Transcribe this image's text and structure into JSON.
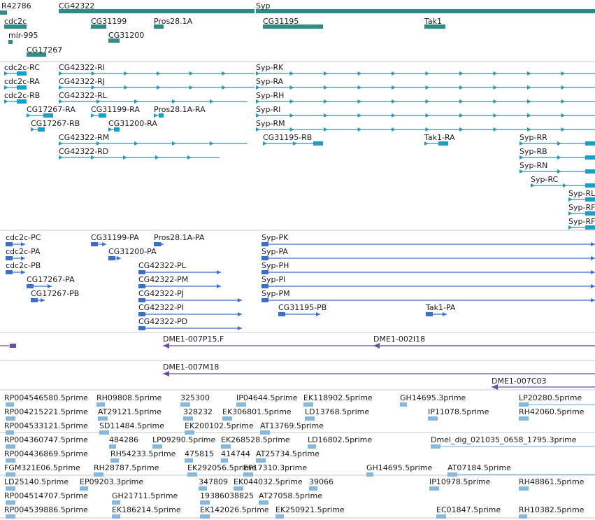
{
  "colors": {
    "gene": "#2e8b87",
    "transcript": "#1aa0c4",
    "protein": "#3a6fd0",
    "clone": "#6a4fa0",
    "est": "#86b9e0",
    "divider": "#c8c8c8"
  },
  "tracks": [
    {
      "name": "genes",
      "features": [
        {
          "label": "R42786"
        },
        {
          "label": "CG42322"
        },
        {
          "label": "Syp"
        },
        {
          "label": "cdc2c"
        },
        {
          "label": "CG31199"
        },
        {
          "label": "Pros28.1A"
        },
        {
          "label": "CG31195"
        },
        {
          "label": "Tak1"
        },
        {
          "label": "mir-995"
        },
        {
          "label": "CG31200"
        },
        {
          "label": "CG17267"
        }
      ]
    },
    {
      "name": "transcripts",
      "features": [
        {
          "label": "cdc2c-RC"
        },
        {
          "label": "CG42322-RI"
        },
        {
          "label": "Syp-RK"
        },
        {
          "label": "cdc2c-RA"
        },
        {
          "label": "CG42322-RJ"
        },
        {
          "label": "Syp-RA"
        },
        {
          "label": "cdc2c-RB"
        },
        {
          "label": "CG42322-RL"
        },
        {
          "label": "Syp-RH"
        },
        {
          "label": "CG17267-RA"
        },
        {
          "label": "CG31199-RA"
        },
        {
          "label": "Pros28.1A-RA"
        },
        {
          "label": "Syp-RI"
        },
        {
          "label": "CG17267-RB"
        },
        {
          "label": "CG31200-RA"
        },
        {
          "label": "Syp-RM"
        },
        {
          "label": "CG42322-RM"
        },
        {
          "label": "CG31195-RB"
        },
        {
          "label": "Tak1-RA"
        },
        {
          "label": "Syp-RR"
        },
        {
          "label": "CG42322-RD"
        },
        {
          "label": "Syp-RB"
        },
        {
          "label": "Syp-RN"
        },
        {
          "label": "Syp-RC"
        },
        {
          "label": "Syp-RL"
        },
        {
          "label": "Syp-RF"
        },
        {
          "label": "Syp-RF"
        }
      ]
    },
    {
      "name": "proteins",
      "features": [
        {
          "label": "cdc2c-PC"
        },
        {
          "label": "CG31199-PA"
        },
        {
          "label": "Pros28.1A-PA"
        },
        {
          "label": "Syp-PK"
        },
        {
          "label": "cdc2c-PA"
        },
        {
          "label": "CG31200-PA"
        },
        {
          "label": "Syp-PA"
        },
        {
          "label": "cdc2c-PB"
        },
        {
          "label": "CG42322-PL"
        },
        {
          "label": "Syp-PH"
        },
        {
          "label": "CG17267-PA"
        },
        {
          "label": "CG42322-PM"
        },
        {
          "label": "Syp-PI"
        },
        {
          "label": "CG17267-PB"
        },
        {
          "label": "CG42322-PJ"
        },
        {
          "label": "Syp-PM"
        },
        {
          "label": "CG42322-PI"
        },
        {
          "label": "CG31195-PB"
        },
        {
          "label": "Tak1-PA"
        },
        {
          "label": "CG42322-PD"
        }
      ]
    },
    {
      "name": "clones",
      "features": [
        {
          "label": "DME1-007P15.F"
        },
        {
          "label": "DME1-002I18"
        },
        {
          "label": "DME1-007M18"
        },
        {
          "label": "DME1-007C03"
        }
      ]
    },
    {
      "name": "ests",
      "features": [
        {
          "label": "RP004546580.5prime"
        },
        {
          "label": "RH09808.5prime"
        },
        {
          "label": "325300"
        },
        {
          "label": "IP04644.5prime"
        },
        {
          "label": "EK118902.5prime"
        },
        {
          "label": "GH14695.3prime"
        },
        {
          "label": "LP20280.5prime"
        },
        {
          "label": "RP004215221.5prime"
        },
        {
          "label": "AT29121.5prime"
        },
        {
          "label": "328232"
        },
        {
          "label": "EK306801.5prime"
        },
        {
          "label": "LD13768.5prime"
        },
        {
          "label": "IP11078.5prime"
        },
        {
          "label": "RH42060.5prime"
        },
        {
          "label": "RP004533121.5prime"
        },
        {
          "label": "SD11484.5prime"
        },
        {
          "label": "EK200102.5prime"
        },
        {
          "label": "AT13769.5prime"
        },
        {
          "label": "RP004360747.5prime"
        },
        {
          "label": "484286"
        },
        {
          "label": "LP09290.5prime"
        },
        {
          "label": "EK268528.5prime"
        },
        {
          "label": "LD16802.5prime"
        },
        {
          "label": "Dmel_dig_021035_0658_1795.3prime"
        },
        {
          "label": "RP004436869.5prime"
        },
        {
          "label": "RH54233.5prime"
        },
        {
          "label": "475815"
        },
        {
          "label": "414744"
        },
        {
          "label": "AT25734.5prime"
        },
        {
          "label": "FGM321E06.5prime"
        },
        {
          "label": "RH28787.5prime"
        },
        {
          "label": "EK292056.5prime"
        },
        {
          "label": "EP17310.3prime"
        },
        {
          "label": "GH14695.5prime"
        },
        {
          "label": "AT07184.5prime"
        },
        {
          "label": "LD25140.5prime"
        },
        {
          "label": "EP09203.3prime"
        },
        {
          "label": "347809"
        },
        {
          "label": "EK044032.5prime"
        },
        {
          "label": "39066"
        },
        {
          "label": "IP10978.5prime"
        },
        {
          "label": "RH48861.5prime"
        },
        {
          "label": "RP004514707.5prime"
        },
        {
          "label": "GH21711.5prime"
        },
        {
          "label": "19386038825"
        },
        {
          "label": "AT27058.5prime"
        },
        {
          "label": "RP004539886.5prime"
        },
        {
          "label": "EK186214.5prime"
        },
        {
          "label": "EK142026.5prime"
        },
        {
          "label": "EK250921.5prime"
        },
        {
          "label": "EC01847.5prime"
        },
        {
          "label": "RH10382.5prime"
        }
      ]
    }
  ]
}
